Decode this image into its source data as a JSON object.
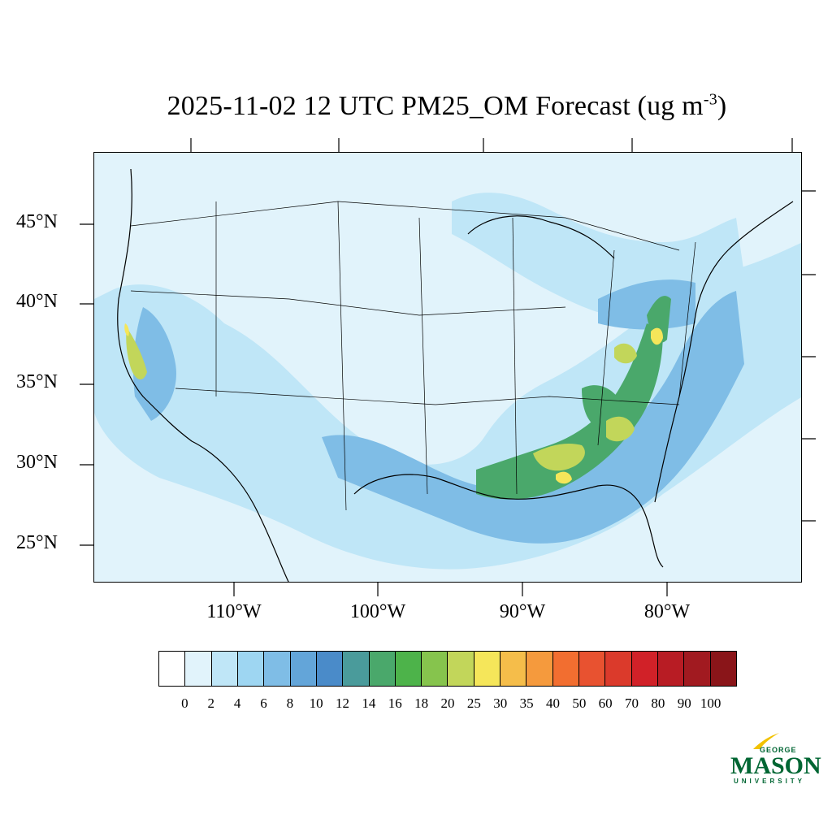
{
  "title": {
    "main": "2025-11-02 12 UTC PM25_OM Forecast (ug m",
    "superscript": "-3",
    "close": ")"
  },
  "map": {
    "lat_labels": [
      "45°N",
      "40°N",
      "35°N",
      "30°N",
      "25°N"
    ],
    "lon_labels": [
      "110°W",
      "100°W",
      "90°W",
      "80°W"
    ],
    "background_color": "#e1f3fb"
  },
  "colorbar": {
    "colors": [
      "#ffffff",
      "#e1f3fb",
      "#bfe6f7",
      "#9ed6f2",
      "#7fbde6",
      "#63a5d9",
      "#4a8bc9",
      "#4a9b9b",
      "#4aa86b",
      "#4db34a",
      "#86c44d",
      "#c2d65a",
      "#f5e65a",
      "#f5bd4a",
      "#f59a3d",
      "#f26e30",
      "#e85230",
      "#db3a2b",
      "#d12128",
      "#b81c24",
      "#a11a20",
      "#8a1519"
    ],
    "labels": [
      "0",
      "2",
      "4",
      "6",
      "8",
      "10",
      "12",
      "14",
      "16",
      "18",
      "20",
      "25",
      "30",
      "35",
      "40",
      "50",
      "60",
      "70",
      "80",
      "90",
      "100"
    ]
  },
  "logo": {
    "george": "GEORGE",
    "mason": "MASON",
    "university": "UNIVERSITY",
    "color": "#006633",
    "accent": "#f2c200"
  }
}
